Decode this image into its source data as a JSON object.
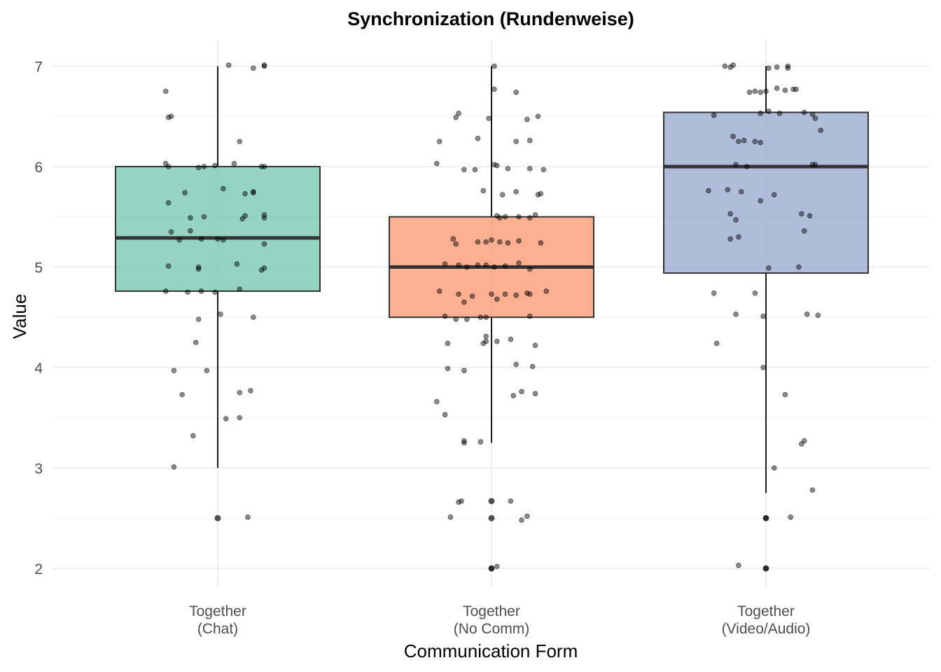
{
  "chart_data": {
    "type": "box",
    "title": "Synchronization (Rundenweise)",
    "xlabel": "Communication Form",
    "ylabel": "Value",
    "ylim": [
      1.8,
      7.3
    ],
    "yticks": [
      2,
      3,
      4,
      5,
      6,
      7
    ],
    "grid": true,
    "legend": "none",
    "categories": [
      {
        "label_line1": "Together",
        "label_line2": "(Chat)"
      },
      {
        "label_line1": "Together",
        "label_line2": "(No Comm)"
      },
      {
        "label_line1": "Together",
        "label_line2": "(Video/Audio)"
      }
    ],
    "boxes": [
      {
        "color": "#66c2a5",
        "q1": 4.76,
        "median": 5.29,
        "q3": 6.0,
        "whisker_low": 3.0,
        "whisker_high": 7.0,
        "outliers": [
          2.5
        ]
      },
      {
        "color": "#fc8d62",
        "q1": 4.5,
        "median": 5.0,
        "q3": 5.5,
        "whisker_low": 3.25,
        "whisker_high": 7.0,
        "outliers": [
          2.67,
          2.5,
          2.0
        ]
      },
      {
        "color": "#8da0cb",
        "q1": 4.94,
        "median": 6.0,
        "q3": 6.54,
        "whisker_low": 2.75,
        "whisker_high": 7.0,
        "outliers": [
          2.5,
          2.0
        ]
      }
    ],
    "points": [
      [
        [
          -0.19,
          6.75
        ],
        [
          -0.18,
          6.49
        ],
        [
          -0.17,
          6.5
        ],
        [
          -0.19,
          6.03
        ],
        [
          -0.18,
          6.0
        ],
        [
          -0.18,
          5.64
        ],
        [
          -0.17,
          5.35
        ],
        [
          -0.14,
          5.27
        ],
        [
          -0.1,
          5.36
        ],
        [
          -0.12,
          5.74
        ],
        [
          -0.1,
          5.49
        ],
        [
          -0.05,
          5.5
        ],
        [
          -0.07,
          5.99
        ],
        [
          -0.05,
          6.0
        ],
        [
          -0.01,
          6.01
        ],
        [
          0.06,
          6.03
        ],
        [
          0.08,
          6.25
        ],
        [
          0.16,
          6.0
        ],
        [
          0.17,
          6.0
        ],
        [
          0.02,
          5.78
        ],
        [
          0.1,
          5.73
        ],
        [
          0.13,
          5.75
        ],
        [
          0.13,
          5.74
        ],
        [
          0.1,
          5.51
        ],
        [
          0.09,
          5.48
        ],
        [
          0.17,
          5.49
        ],
        [
          0.17,
          5.52
        ],
        [
          0.0,
          5.28
        ],
        [
          0.02,
          5.27
        ],
        [
          -0.06,
          5.28
        ],
        [
          0.17,
          5.23
        ],
        [
          -0.18,
          5.01
        ],
        [
          -0.07,
          5.0
        ],
        [
          -0.07,
          4.98
        ],
        [
          0.07,
          5.03
        ],
        [
          0.16,
          4.97
        ],
        [
          0.17,
          4.99
        ],
        [
          -0.19,
          4.76
        ],
        [
          -0.11,
          4.75
        ],
        [
          -0.06,
          4.76
        ],
        [
          -0.01,
          4.75
        ],
        [
          0.08,
          4.78
        ],
        [
          0.01,
          4.53
        ],
        [
          -0.07,
          4.48
        ],
        [
          0.13,
          4.5
        ],
        [
          -0.08,
          4.25
        ],
        [
          -0.16,
          3.97
        ],
        [
          -0.04,
          3.97
        ],
        [
          -0.13,
          3.73
        ],
        [
          0.08,
          3.75
        ],
        [
          0.12,
          3.77
        ],
        [
          0.03,
          3.49
        ],
        [
          0.08,
          3.5
        ],
        [
          -0.09,
          3.32
        ],
        [
          -0.16,
          3.01
        ],
        [
          0.04,
          7.01
        ],
        [
          0.13,
          6.98
        ],
        [
          0.17,
          7.01
        ],
        [
          0.17,
          7.0
        ],
        [
          0.11,
          2.51
        ]
      ],
      [
        [
          0.01,
          7.0
        ],
        [
          0.01,
          6.77
        ],
        [
          0.09,
          6.74
        ],
        [
          -0.13,
          6.49
        ],
        [
          -0.12,
          6.53
        ],
        [
          -0.01,
          6.48
        ],
        [
          0.13,
          6.47
        ],
        [
          0.17,
          6.5
        ],
        [
          -0.19,
          6.25
        ],
        [
          -0.05,
          6.28
        ],
        [
          0.09,
          6.25
        ],
        [
          0.14,
          6.26
        ],
        [
          -0.2,
          6.03
        ],
        [
          -0.1,
          5.97
        ],
        [
          -0.06,
          5.97
        ],
        [
          0.01,
          6.02
        ],
        [
          0.02,
          6.01
        ],
        [
          0.06,
          5.98
        ],
        [
          0.14,
          5.98
        ],
        [
          0.19,
          5.97
        ],
        [
          -0.03,
          5.76
        ],
        [
          0.04,
          5.72
        ],
        [
          0.09,
          5.75
        ],
        [
          0.18,
          5.73
        ],
        [
          0.17,
          5.72
        ],
        [
          0.02,
          5.51
        ],
        [
          0.03,
          5.49
        ],
        [
          0.05,
          5.5
        ],
        [
          0.1,
          5.5
        ],
        [
          0.14,
          5.49
        ],
        [
          0.16,
          5.52
        ],
        [
          -0.14,
          5.28
        ],
        [
          -0.13,
          5.23
        ],
        [
          -0.05,
          5.25
        ],
        [
          -0.02,
          5.25
        ],
        [
          0.0,
          5.27
        ],
        [
          0.03,
          5.25
        ],
        [
          0.06,
          5.24
        ],
        [
          0.1,
          5.26
        ],
        [
          0.18,
          5.24
        ],
        [
          -0.17,
          5.03
        ],
        [
          -0.12,
          5.02
        ],
        [
          -0.09,
          5.0
        ],
        [
          -0.05,
          5.02
        ],
        [
          -0.02,
          5.02
        ],
        [
          0.01,
          5.0
        ],
        [
          0.05,
          5.01
        ],
        [
          0.1,
          5.04
        ],
        [
          0.14,
          4.98
        ],
        [
          -0.19,
          4.76
        ],
        [
          -0.12,
          4.73
        ],
        [
          -0.1,
          4.65
        ],
        [
          -0.07,
          4.71
        ],
        [
          0.0,
          4.73
        ],
        [
          0.02,
          4.68
        ],
        [
          0.05,
          4.73
        ],
        [
          0.09,
          4.72
        ],
        [
          0.13,
          4.74
        ],
        [
          0.14,
          4.73
        ],
        [
          0.2,
          4.76
        ],
        [
          -0.17,
          4.51
        ],
        [
          -0.13,
          4.48
        ],
        [
          -0.09,
          4.48
        ],
        [
          -0.04,
          4.5
        ],
        [
          -0.02,
          4.5
        ],
        [
          0.14,
          4.51
        ],
        [
          -0.02,
          4.31
        ],
        [
          -0.02,
          4.26
        ],
        [
          -0.03,
          4.24
        ],
        [
          0.02,
          4.26
        ],
        [
          0.07,
          4.28
        ],
        [
          0.16,
          4.22
        ],
        [
          -0.16,
          4.24
        ],
        [
          -0.16,
          3.99
        ],
        [
          -0.1,
          3.97
        ],
        [
          0.09,
          4.03
        ],
        [
          0.15,
          4.01
        ],
        [
          0.08,
          3.72
        ],
        [
          0.11,
          3.76
        ],
        [
          0.16,
          3.74
        ],
        [
          -0.2,
          3.66
        ],
        [
          -0.17,
          3.53
        ],
        [
          -0.1,
          3.27
        ],
        [
          -0.1,
          3.25
        ],
        [
          -0.04,
          3.26
        ],
        [
          -0.12,
          2.66
        ],
        [
          -0.11,
          2.67
        ],
        [
          0.07,
          2.67
        ],
        [
          -0.15,
          2.51
        ],
        [
          0.11,
          2.48
        ],
        [
          0.13,
          2.52
        ],
        [
          0.02,
          2.02
        ],
        [
          0.0,
          2.0
        ]
      ],
      [
        [
          -0.15,
          7.0
        ],
        [
          -0.13,
          6.99
        ],
        [
          -0.12,
          7.01
        ],
        [
          0.01,
          6.98
        ],
        [
          0.04,
          6.99
        ],
        [
          0.08,
          7.0
        ],
        [
          0.08,
          6.98
        ],
        [
          -0.06,
          6.74
        ],
        [
          -0.04,
          6.75
        ],
        [
          -0.02,
          6.74
        ],
        [
          0.0,
          6.75
        ],
        [
          0.04,
          6.78
        ],
        [
          0.07,
          6.76
        ],
        [
          0.1,
          6.77
        ],
        [
          0.11,
          6.77
        ],
        [
          -0.19,
          6.51
        ],
        [
          -0.02,
          6.53
        ],
        [
          0.01,
          6.55
        ],
        [
          0.05,
          6.53
        ],
        [
          0.14,
          6.54
        ],
        [
          0.17,
          6.52
        ],
        [
          0.18,
          6.48
        ],
        [
          0.2,
          6.36
        ],
        [
          -0.12,
          6.3
        ],
        [
          -0.1,
          6.25
        ],
        [
          -0.08,
          6.26
        ],
        [
          -0.04,
          6.25
        ],
        [
          -0.02,
          6.24
        ],
        [
          -0.11,
          6.02
        ],
        [
          -0.07,
          6.0
        ],
        [
          0.17,
          6.02
        ],
        [
          0.18,
          6.02
        ],
        [
          -0.21,
          5.76
        ],
        [
          -0.14,
          5.77
        ],
        [
          -0.09,
          5.75
        ],
        [
          0.03,
          5.72
        ],
        [
          -0.02,
          5.66
        ],
        [
          -0.13,
          5.53
        ],
        [
          -0.11,
          5.47
        ],
        [
          0.13,
          5.53
        ],
        [
          0.16,
          5.51
        ],
        [
          -0.1,
          5.3
        ],
        [
          -0.13,
          5.28
        ],
        [
          0.14,
          5.36
        ],
        [
          0.01,
          4.99
        ],
        [
          0.12,
          5.0
        ],
        [
          -0.19,
          4.74
        ],
        [
          -0.04,
          4.74
        ],
        [
          -0.11,
          4.53
        ],
        [
          -0.01,
          4.51
        ],
        [
          0.15,
          4.53
        ],
        [
          0.19,
          4.52
        ],
        [
          -0.18,
          4.24
        ],
        [
          -0.01,
          4.0
        ],
        [
          0.07,
          3.73
        ],
        [
          0.13,
          3.24
        ],
        [
          0.14,
          3.27
        ],
        [
          0.17,
          2.78
        ],
        [
          0.03,
          3.0
        ],
        [
          0.09,
          2.51
        ],
        [
          -0.1,
          2.03
        ],
        [
          0.0,
          2.5
        ],
        [
          0.0,
          2.0
        ]
      ]
    ]
  }
}
